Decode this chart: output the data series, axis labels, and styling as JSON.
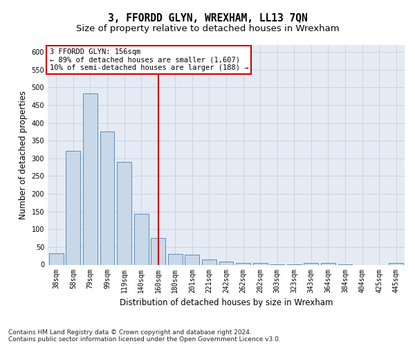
{
  "title": "3, FFORDD GLYN, WREXHAM, LL13 7QN",
  "subtitle": "Size of property relative to detached houses in Wrexham",
  "xlabel": "Distribution of detached houses by size in Wrexham",
  "ylabel": "Number of detached properties",
  "categories": [
    "38sqm",
    "58sqm",
    "79sqm",
    "99sqm",
    "119sqm",
    "140sqm",
    "160sqm",
    "180sqm",
    "201sqm",
    "221sqm",
    "242sqm",
    "262sqm",
    "282sqm",
    "303sqm",
    "323sqm",
    "343sqm",
    "364sqm",
    "384sqm",
    "404sqm",
    "425sqm",
    "445sqm"
  ],
  "values": [
    32,
    322,
    483,
    375,
    290,
    144,
    75,
    31,
    29,
    15,
    8,
    4,
    4,
    1,
    1,
    5,
    5,
    1,
    0,
    0,
    5
  ],
  "bar_color": "#c8d8e8",
  "bar_edge_color": "#5b8db8",
  "bar_linewidth": 0.7,
  "grid_color": "#c8d0dc",
  "background_color": "#e4ebf5",
  "annotation_text": "3 FFORDD GLYN: 156sqm\n← 89% of detached houses are smaller (1,607)\n10% of semi-detached houses are larger (188) →",
  "annotation_box_color": "#ffffff",
  "annotation_box_edge_color": "#cc0000",
  "vline_x": 6.0,
  "vline_color": "#cc0000",
  "ylim": [
    0,
    620
  ],
  "yticks": [
    0,
    50,
    100,
    150,
    200,
    250,
    300,
    350,
    400,
    450,
    500,
    550,
    600
  ],
  "footer_text": "Contains HM Land Registry data © Crown copyright and database right 2024.\nContains public sector information licensed under the Open Government Licence v3.0.",
  "title_fontsize": 10.5,
  "subtitle_fontsize": 9.5,
  "xlabel_fontsize": 8.5,
  "ylabel_fontsize": 8.5,
  "tick_fontsize": 7,
  "annotation_fontsize": 7.5,
  "footer_fontsize": 6.5
}
